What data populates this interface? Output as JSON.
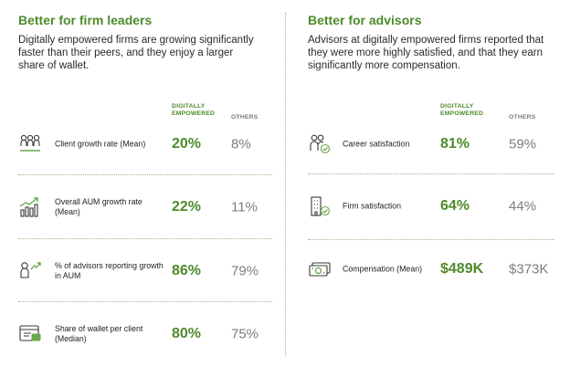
{
  "left": {
    "heading": "Better for firm leaders",
    "description": "Digitally empowered firms are growing significantly faster than their peers, and they enjoy a larger share of wallet.",
    "col_digital": "DIGITALLY EMPOWERED",
    "col_others": "OTHERS",
    "rows": [
      {
        "icon": "people-group-icon",
        "label": "Client growth rate (Mean)",
        "digital": "20%",
        "others": "8%"
      },
      {
        "icon": "bar-chart-trend-icon",
        "label": "Overall AUM growth rate (Mean)",
        "digital": "22%",
        "others": "11%"
      },
      {
        "icon": "person-growth-icon",
        "label": "% of advisors reporting growth in AUM",
        "digital": "86%",
        "others": "79%"
      },
      {
        "icon": "wallet-card-icon",
        "label": "Share of wallet per client (Median)",
        "digital": "80%",
        "others": "75%"
      }
    ]
  },
  "right": {
    "heading": "Better for advisors",
    "description": "Advisors at digitally empowered firms reported that they were more highly satisfied, and that they earn significantly more compensation.",
    "col_digital": "DIGITALLY EMPOWERED",
    "col_others": "OTHERS",
    "rows": [
      {
        "icon": "people-check-icon",
        "label": "Career satisfaction",
        "digital": "81%",
        "others": "59%"
      },
      {
        "icon": "building-check-icon",
        "label": "Firm satisfaction",
        "digital": "64%",
        "others": "44%"
      },
      {
        "icon": "money-stack-icon",
        "label": "Compensation (Mean)",
        "digital": "$489K",
        "others": "$373K"
      }
    ]
  },
  "colors": {
    "accent": "#4e8a2b",
    "muted": "#7d7d7d",
    "icon_green": "#6aa84f"
  }
}
